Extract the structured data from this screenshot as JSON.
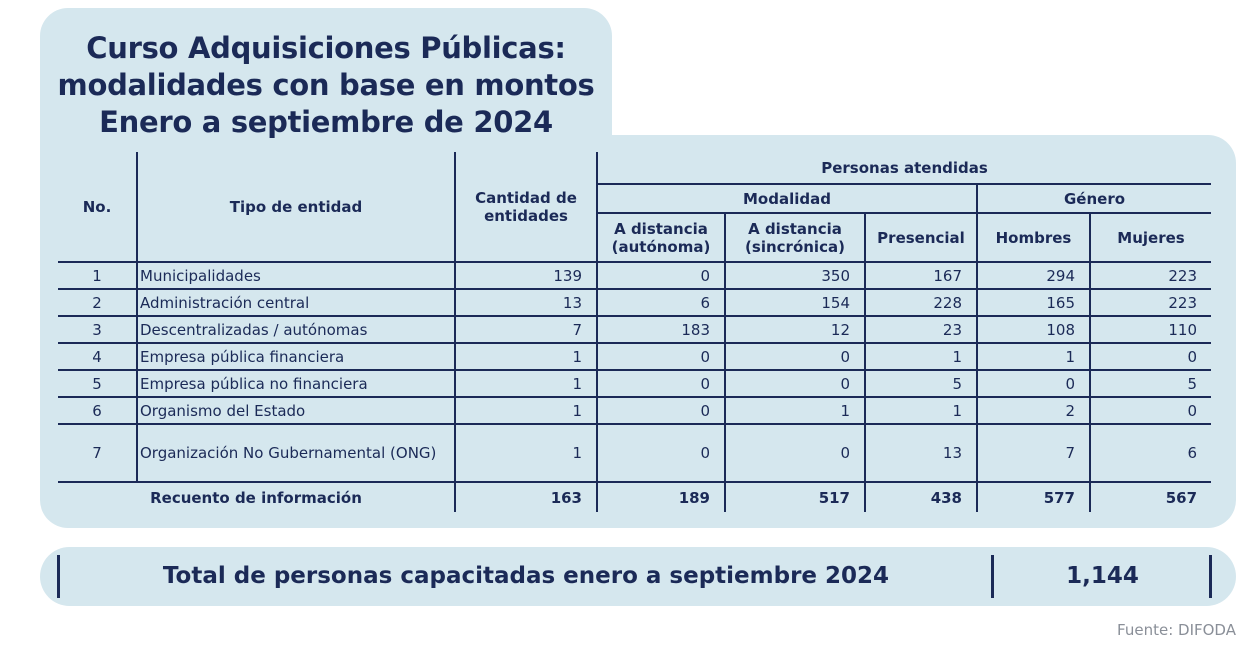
{
  "title": {
    "line1": "Curso Adquisiciones Públicas:",
    "line2": "modalidades con base en montos",
    "line3": "Enero a septiembre de 2024"
  },
  "headers": {
    "no": "No.",
    "tipo": "Tipo de entidad",
    "cantidad": "Cantidad de entidades",
    "personas": "Personas atendidas",
    "modalidad": "Modalidad",
    "genero": "Género",
    "aut": "A distancia (autónoma)",
    "sinc": "A distancia (sincrónica)",
    "pres": "Presencial",
    "hombres": "Hombres",
    "mujeres": "Mujeres"
  },
  "rows": [
    {
      "no": "1",
      "tipo": "Municipalidades",
      "cant": "139",
      "aut": "0",
      "sinc": "350",
      "pres": "167",
      "h": "294",
      "m": "223"
    },
    {
      "no": "2",
      "tipo": "Administración central",
      "cant": "13",
      "aut": "6",
      "sinc": "154",
      "pres": "228",
      "h": "165",
      "m": "223"
    },
    {
      "no": "3",
      "tipo": "Descentralizadas / autónomas",
      "cant": "7",
      "aut": "183",
      "sinc": "12",
      "pres": "23",
      "h": "108",
      "m": "110"
    },
    {
      "no": "4",
      "tipo": "Empresa pública financiera",
      "cant": "1",
      "aut": "0",
      "sinc": "0",
      "pres": "1",
      "h": "1",
      "m": "0"
    },
    {
      "no": "5",
      "tipo": "Empresa pública no financiera",
      "cant": "1",
      "aut": "0",
      "sinc": "0",
      "pres": "5",
      "h": "0",
      "m": "5"
    },
    {
      "no": "6",
      "tipo": "Organismo del Estado",
      "cant": "1",
      "aut": "0",
      "sinc": "1",
      "pres": "1",
      "h": "2",
      "m": "0"
    },
    {
      "no": "7",
      "tipo": "Organización No Gubernamental (ONG)",
      "cant": "1",
      "aut": "0",
      "sinc": "0",
      "pres": "13",
      "h": "7",
      "m": "6"
    }
  ],
  "total": {
    "label": "Recuento de información",
    "cant": "163",
    "aut": "189",
    "sinc": "517",
    "pres": "438",
    "h": "577",
    "m": "567"
  },
  "summary": {
    "label": "Total de personas capacitadas enero a septiembre 2024",
    "value": "1,144"
  },
  "source": "Fuente: DIFODA",
  "colors": {
    "background": "#d5e7ee",
    "navy": "#1b2a57"
  }
}
